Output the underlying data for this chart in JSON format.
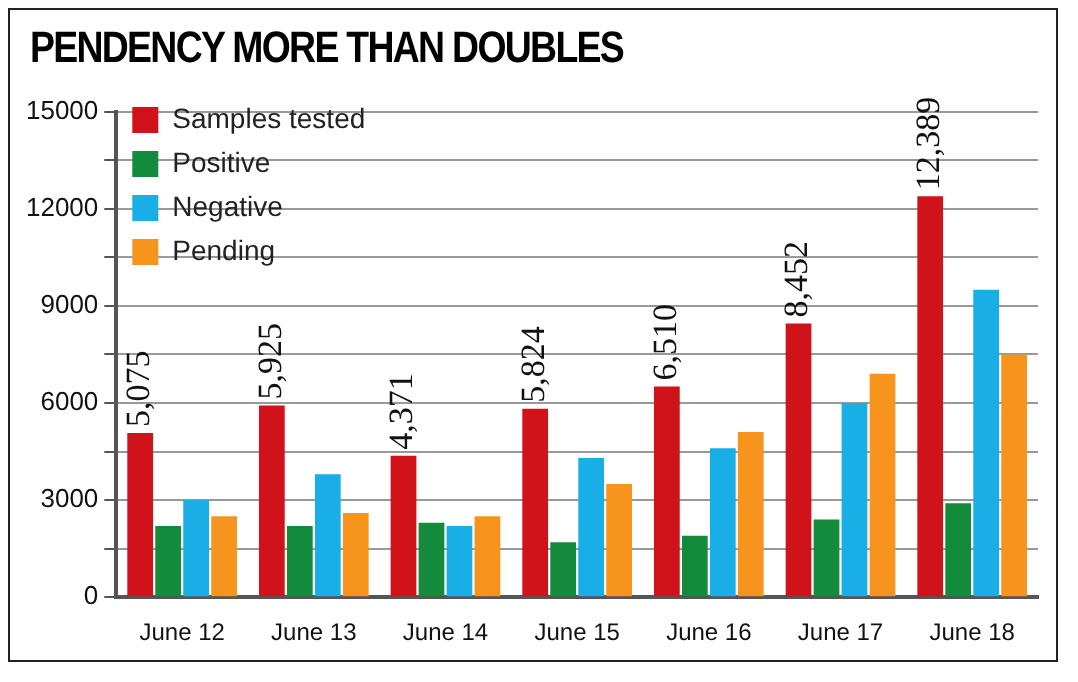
{
  "chart_data": {
    "type": "bar",
    "title": "PENDENCY MORE THAN DOUBLES",
    "categories": [
      "June 12",
      "June 13",
      "June 14",
      "June 15",
      "June 16",
      "June 17",
      "June 18"
    ],
    "series": [
      {
        "name": "Samples tested",
        "color": "#d0121b",
        "values": [
          5075,
          5925,
          4371,
          5824,
          6510,
          8452,
          12389
        ],
        "value_labels": [
          "5,075",
          "5,925",
          "4,371",
          "5,824",
          "6,510",
          "8,452",
          "12,389"
        ]
      },
      {
        "name": "Positive",
        "color": "#138a3c",
        "values": [
          2200,
          2200,
          2300,
          1700,
          1900,
          2400,
          2900
        ]
      },
      {
        "name": "Negative",
        "color": "#19aee6",
        "values": [
          3000,
          3800,
          2200,
          4300,
          4600,
          6000,
          9500
        ]
      },
      {
        "name": "Pending",
        "color": "#f7941d",
        "values": [
          2500,
          2600,
          2500,
          3500,
          5100,
          6900,
          7500
        ]
      }
    ],
    "ylim": [
      0,
      15000
    ],
    "yticks": [
      0,
      {
        "value": 1500,
        "label": null
      },
      3000,
      {
        "value": 4500,
        "label": null
      },
      6000,
      {
        "value": 7500,
        "label": null
      },
      9000,
      {
        "value": 10500,
        "label": null
      },
      12000,
      {
        "value": 13500,
        "label": null
      },
      15000
    ],
    "grid": "y",
    "legend": "top"
  }
}
